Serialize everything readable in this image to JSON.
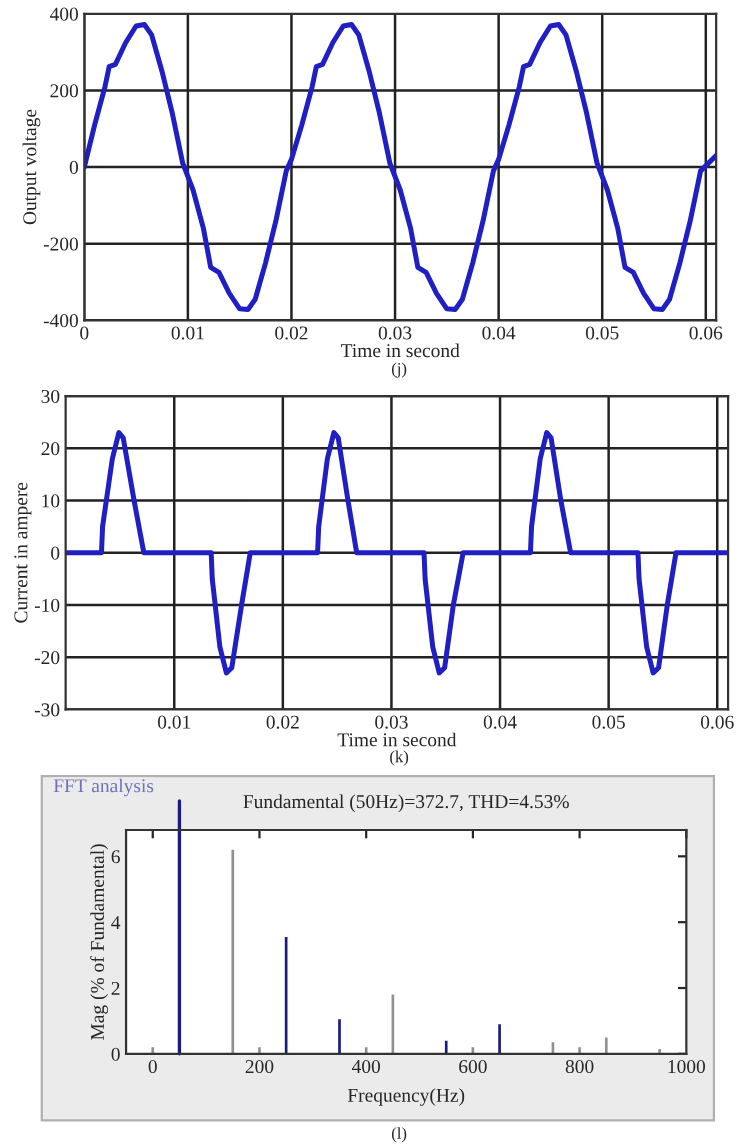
{
  "chart_data": [
    {
      "type": "line",
      "xlabel": "Time in second",
      "ylabel": "Output voltage",
      "xlim": [
        0,
        0.061
      ],
      "ylim": [
        -400,
        400
      ],
      "xticks": [
        0,
        0.01,
        0.02,
        0.03,
        0.04,
        0.05,
        0.06
      ],
      "yticks": [
        -400,
        -200,
        0,
        200,
        400
      ],
      "grid": true,
      "annotations": [
        "(j)"
      ],
      "series": [
        {
          "color": "#1f1fc4",
          "x": [
            0,
            0.001,
            0.002,
            0.0024,
            0.003,
            0.004,
            0.005,
            0.0058,
            0.0065,
            0.0075,
            0.0085,
            0.0095,
            0.0105,
            0.0115,
            0.0122,
            0.013,
            0.014,
            0.015,
            0.0158,
            0.0165,
            0.0175,
            0.0185,
            0.0195,
            0.02,
            0.021,
            0.022,
            0.0224,
            0.023,
            0.024,
            0.025,
            0.0258,
            0.0265,
            0.0275,
            0.0285,
            0.0295,
            0.0305,
            0.0315,
            0.0322,
            0.033,
            0.034,
            0.035,
            0.0358,
            0.0365,
            0.0375,
            0.0385,
            0.0395,
            0.04,
            0.041,
            0.042,
            0.0424,
            0.043,
            0.044,
            0.045,
            0.0458,
            0.0465,
            0.0475,
            0.0485,
            0.0495,
            0.0505,
            0.0515,
            0.0522,
            0.053,
            0.054,
            0.055,
            0.0558,
            0.0565,
            0.0575,
            0.0585,
            0.0595,
            0.061
          ],
          "values": [
            0,
            110,
            210,
            262,
            268,
            325,
            368,
            372,
            345,
            250,
            140,
            10,
            -60,
            -160,
            -262,
            -275,
            -330,
            -370,
            -372,
            -345,
            -250,
            -140,
            -10,
            20,
            110,
            210,
            262,
            268,
            325,
            368,
            372,
            345,
            250,
            140,
            10,
            -60,
            -160,
            -262,
            -275,
            -330,
            -370,
            -372,
            -345,
            -250,
            -140,
            -10,
            20,
            110,
            210,
            262,
            268,
            325,
            368,
            372,
            345,
            250,
            140,
            10,
            -60,
            -160,
            -262,
            -275,
            -330,
            -370,
            -372,
            -345,
            -250,
            -140,
            -10,
            30
          ]
        }
      ]
    },
    {
      "type": "line",
      "xlabel": "Time in second",
      "ylabel": "Current in ampere",
      "xlim": [
        0,
        0.061
      ],
      "ylim": [
        -30,
        30
      ],
      "xticks": [
        0.01,
        0.02,
        0.03,
        0.04,
        0.05,
        0.06
      ],
      "yticks": [
        -30,
        -20,
        -10,
        0,
        10,
        20,
        30
      ],
      "grid": true,
      "annotations": [
        "(k)"
      ],
      "series": [
        {
          "color": "#1f1fc4",
          "x": [
            0,
            0.0033,
            0.0034,
            0.0043,
            0.0049,
            0.0053,
            0.0063,
            0.0072,
            0.0134,
            0.0135,
            0.0142,
            0.0148,
            0.0153,
            0.0162,
            0.017,
            0.0232,
            0.0233,
            0.0241,
            0.0247,
            0.0251,
            0.026,
            0.0268,
            0.033,
            0.0331,
            0.0338,
            0.0344,
            0.0349,
            0.0357,
            0.0366,
            0.0428,
            0.0429,
            0.0437,
            0.0443,
            0.0447,
            0.0456,
            0.0465,
            0.0527,
            0.0528,
            0.0535,
            0.0541,
            0.0546,
            0.0554,
            0.0562,
            0.061
          ],
          "values": [
            0,
            0,
            5,
            18,
            23,
            22,
            10,
            0,
            0,
            -5,
            -18,
            -23,
            -22,
            -10,
            0,
            0,
            5,
            18,
            23,
            22,
            10,
            0,
            0,
            -5,
            -18,
            -23,
            -22,
            -10,
            0,
            0,
            5,
            18,
            23,
            22,
            10,
            0,
            0,
            -5,
            -18,
            -23,
            -22,
            -10,
            0,
            0
          ]
        }
      ]
    },
    {
      "type": "bar",
      "title": "FFT analysis",
      "subtitle": "Fundamental (50Hz)=372.7, THD=4.53%",
      "xlabel": "Frequency(Hz)",
      "ylabel": "Mag (% of Fundamental)",
      "xlim": [
        -50,
        1000
      ],
      "ylim": [
        0,
        6.8
      ],
      "xticks": [
        0,
        200,
        400,
        600,
        800,
        1000
      ],
      "yticks": [
        0,
        2,
        4,
        6
      ],
      "annotations": [
        "(l)"
      ],
      "ref_lines": [
        {
          "axis": "x",
          "value": 50,
          "color": "#1a1a80"
        }
      ],
      "x": [
        0,
        150,
        200,
        250,
        350,
        400,
        450,
        550,
        600,
        650,
        750,
        800,
        850,
        950
      ],
      "values": [
        0.2,
        6.2,
        0.2,
        3.55,
        1.05,
        0.2,
        1.8,
        0.4,
        0.2,
        0.9,
        0.35,
        0.2,
        0.5,
        0.15
      ],
      "colors": [
        "#909090",
        "#909090",
        "#909090",
        "#1a1a80",
        "#1a1a80",
        "#909090",
        "#909090",
        "#1a1a80",
        "#909090",
        "#1a1a80",
        "#909090",
        "#909090",
        "#909090",
        "#909090"
      ]
    }
  ]
}
